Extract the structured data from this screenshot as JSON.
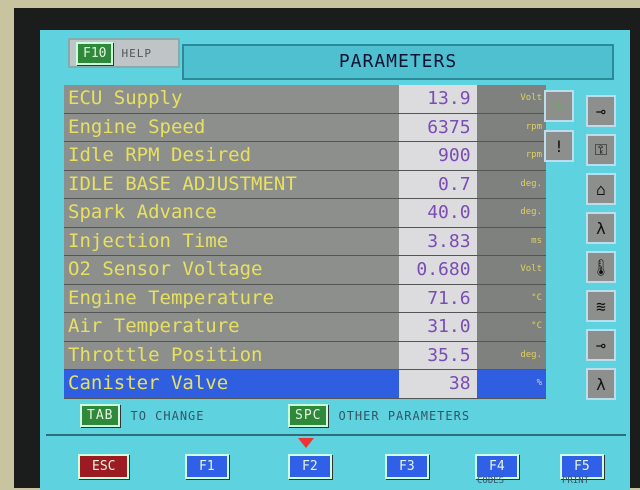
{
  "header": {
    "help_key": "F10",
    "help_label": "HELP",
    "title": "PARAMETERS"
  },
  "parameters": [
    {
      "name": "ECU Supply",
      "value": "13.9",
      "unit": "Volt"
    },
    {
      "name": "Engine Speed",
      "value": "6375",
      "unit": "rpm"
    },
    {
      "name": "Idle RPM Desired",
      "value": "900",
      "unit": "rpm"
    },
    {
      "name": "IDLE BASE ADJUSTMENT",
      "value": "0.7",
      "unit": "deg."
    },
    {
      "name": "Spark Advance",
      "value": "40.0",
      "unit": "deg."
    },
    {
      "name": "Injection Time",
      "value": "3.83",
      "unit": "ms"
    },
    {
      "name": "O2 Sensor Voltage",
      "value": "0.680",
      "unit": "Volt"
    },
    {
      "name": "Engine Temperature",
      "value": "71.6",
      "unit": "°C"
    },
    {
      "name": "Air Temperature",
      "value": "31.0",
      "unit": "°C"
    },
    {
      "name": "Throttle Position",
      "value": "35.5",
      "unit": "deg."
    },
    {
      "name": "Canister Valve",
      "value": "38",
      "unit": "%",
      "selected": true
    }
  ],
  "hints": [
    {
      "key": "TAB",
      "text": "TO CHANGE"
    },
    {
      "key": "SPC",
      "text": "OTHER PARAMETERS"
    }
  ],
  "fkeys": [
    {
      "key": "ESC"
    },
    {
      "key": "F1"
    },
    {
      "key": "F2",
      "active": true
    },
    {
      "key": "F3"
    },
    {
      "key": "F4",
      "label": "CODES"
    },
    {
      "key": "F5",
      "label": "PRINT"
    }
  ],
  "side_icons": [
    "data-freeze-icon",
    "warning-lamp-icon",
    "switch-icon",
    "key-ecu-icon",
    "engine-key-icon",
    "lambda-icon",
    "temperature-icon",
    "injector-icon",
    "switch-valve-icon",
    "lambda-heater-icon"
  ],
  "colors": {
    "screen": "#5fd2e0",
    "name_text": "#e8e060",
    "value_text": "#7a4cb4",
    "selection": "#2f5fe0"
  }
}
